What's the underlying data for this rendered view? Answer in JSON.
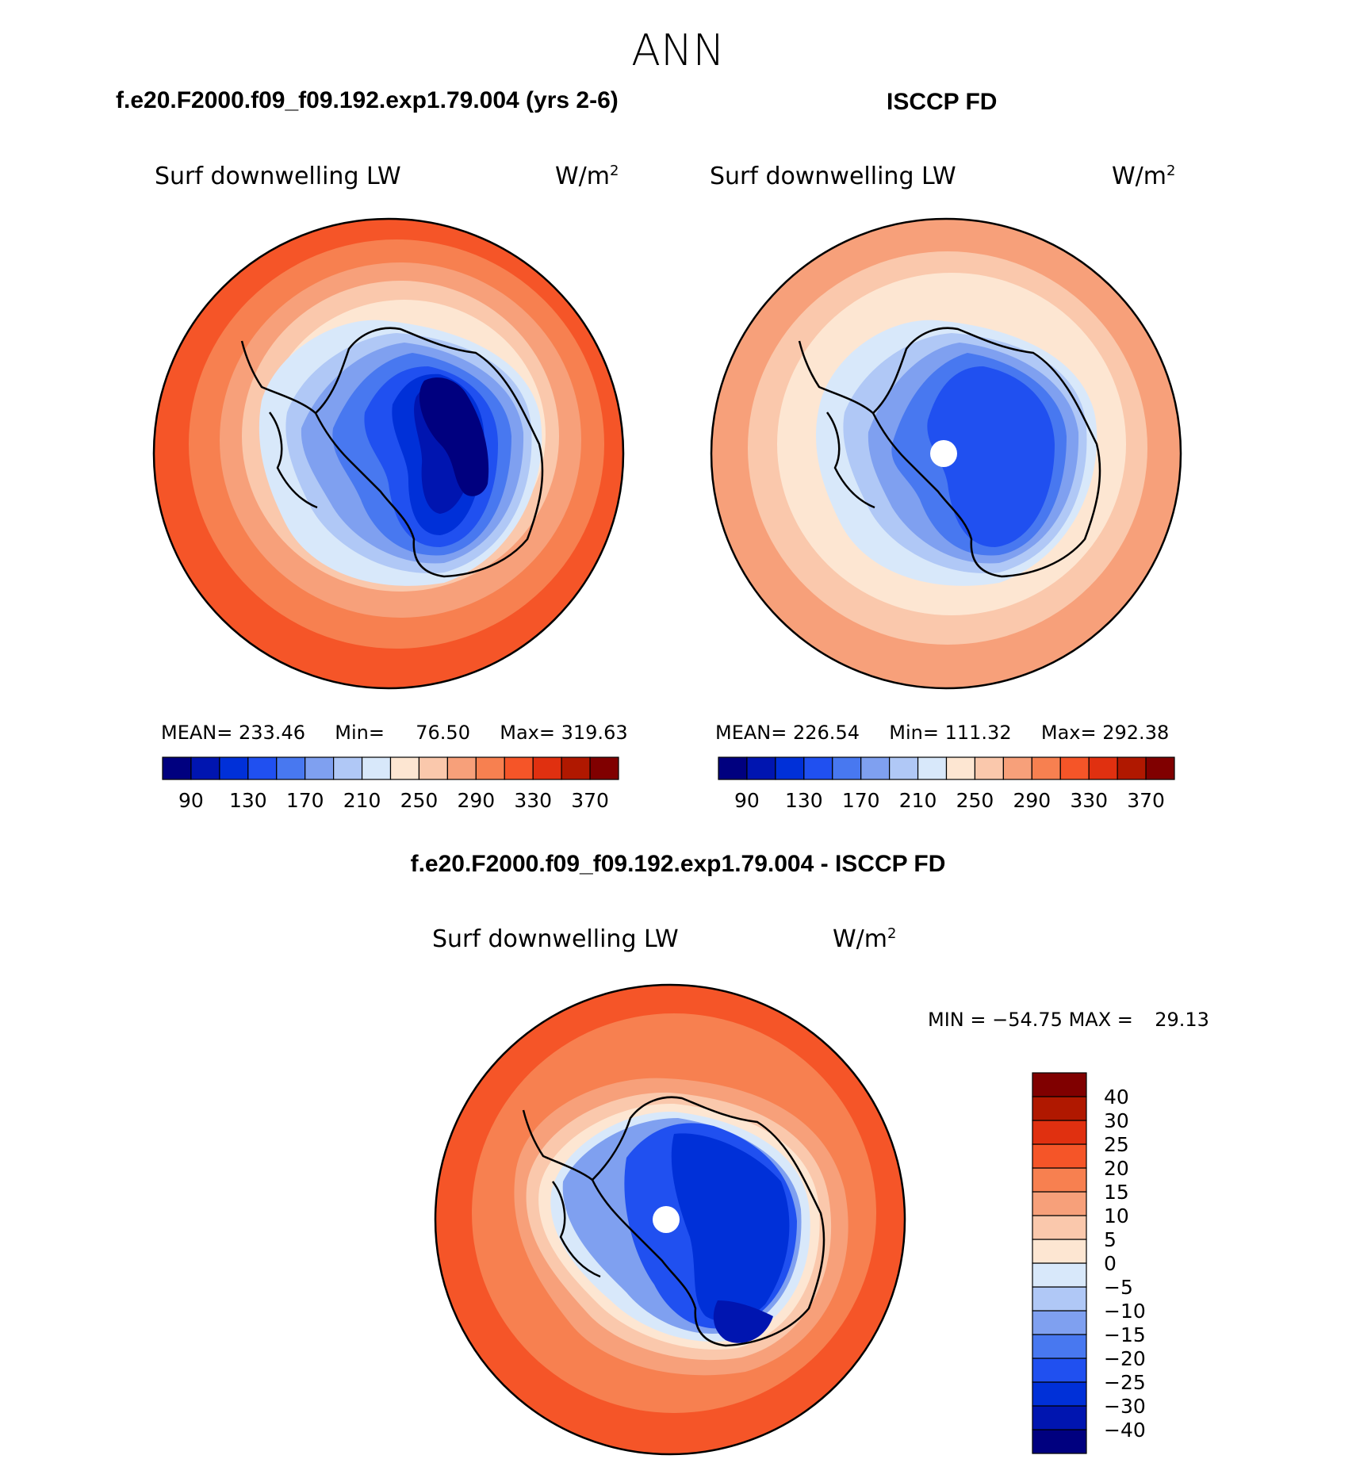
{
  "figure": {
    "season": "ANN",
    "model_title": "f.e20.F2000.f09_f09.192.exp1.79.004 (yrs 2-6)",
    "obs_title": "ISCCP FD",
    "diff_title": "f.e20.F2000.f09_f09.192.exp1.79.004 - ISCCP FD"
  },
  "panels": [
    {
      "id": "model",
      "variable_label": "Surf downwelling LW",
      "units_base": "W/m",
      "units_exp": "2",
      "stats": {
        "mean_label": "MEAN=",
        "mean": "233.46",
        "min_label": "Min=",
        "min": "76.50",
        "max_label": "Max=",
        "max": "319.63"
      }
    },
    {
      "id": "obs",
      "variable_label": "Surf downwelling LW",
      "units_base": "W/m",
      "units_exp": "2",
      "stats": {
        "mean_label": "MEAN=",
        "mean": "226.54",
        "min_label": "Min=",
        "min": "111.32",
        "max_label": "Max=",
        "max": "292.38"
      }
    },
    {
      "id": "diff",
      "variable_label": "Surf downwelling LW",
      "units_base": "W/m",
      "units_exp": "2",
      "stats": {
        "min_label": "MIN =",
        "min": "−54.75",
        "max_label": "MAX =",
        "max": "29.13"
      }
    }
  ],
  "chart_data": [
    {
      "type": "heatmap",
      "projection": "south-polar stereographic",
      "panel": "model",
      "colorbar": {
        "orientation": "horizontal",
        "colors": [
          "#00007f",
          "#0015b0",
          "#0030d8",
          "#2050f0",
          "#4878f0",
          "#7fa0f0",
          "#b0c8f6",
          "#d8e8fa",
          "#fde6d2",
          "#fac8ac",
          "#f7a07a",
          "#f78050",
          "#f55528",
          "#e03010",
          "#b01800",
          "#800000"
        ],
        "tick_labels": [
          "90",
          "130",
          "170",
          "210",
          "250",
          "290",
          "330",
          "370"
        ]
      }
    },
    {
      "type": "heatmap",
      "projection": "south-polar stereographic",
      "panel": "obs",
      "colorbar": {
        "orientation": "horizontal",
        "colors": [
          "#00007f",
          "#0015b0",
          "#0030d8",
          "#2050f0",
          "#4878f0",
          "#7fa0f0",
          "#b0c8f6",
          "#d8e8fa",
          "#fde6d2",
          "#fac8ac",
          "#f7a07a",
          "#f78050",
          "#f55528",
          "#e03010",
          "#b01800",
          "#800000"
        ],
        "tick_labels": [
          "90",
          "130",
          "170",
          "210",
          "250",
          "290",
          "330",
          "370"
        ]
      }
    },
    {
      "type": "heatmap",
      "projection": "south-polar stereographic",
      "panel": "diff",
      "colorbar": {
        "orientation": "vertical",
        "colors": [
          "#00007f",
          "#0015b0",
          "#0030d8",
          "#2050f0",
          "#4878f0",
          "#7fa0f0",
          "#b0c8f6",
          "#d8e8fa",
          "#fde6d2",
          "#fac8ac",
          "#f7a07a",
          "#f78050",
          "#f55528",
          "#e03010",
          "#b01800",
          "#800000"
        ],
        "tick_labels": [
          "−40",
          "−30",
          "−25",
          "−20",
          "−15",
          "−10",
          "−5",
          "0",
          "5",
          "10",
          "15",
          "20",
          "25",
          "30",
          "40"
        ]
      }
    }
  ]
}
